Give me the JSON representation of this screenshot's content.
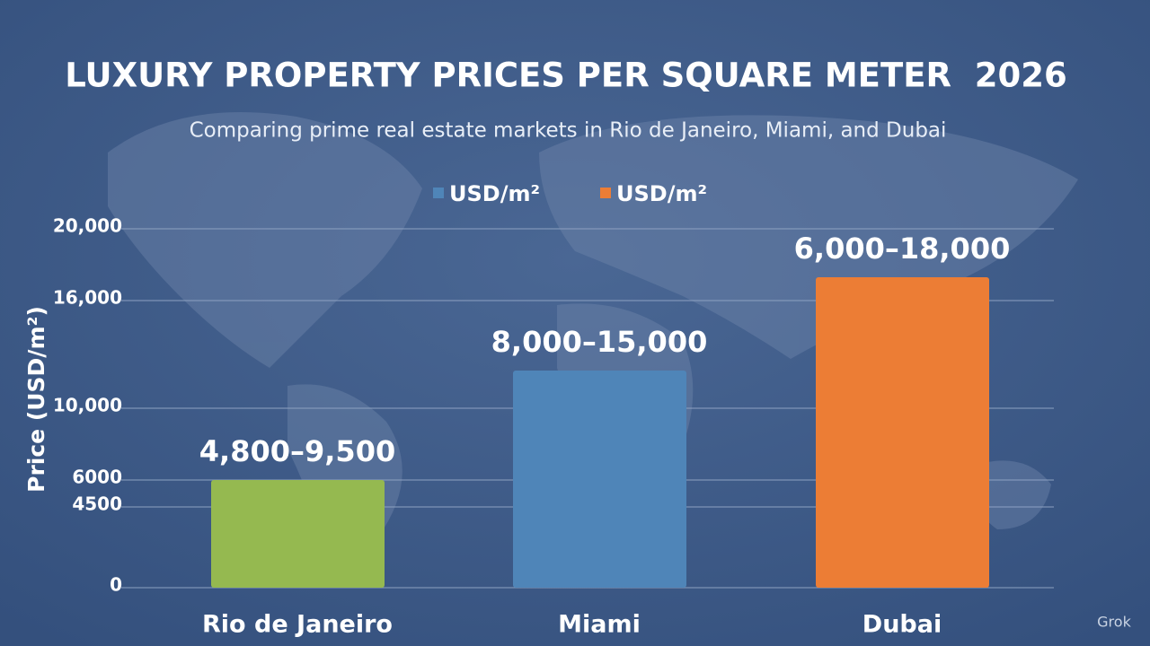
{
  "chart_data": {
    "type": "bar",
    "title": "LUXURY PROPERTY PRICES PER SQUARE METER  2026",
    "subtitle": "Comparing prime real estate markets in Rio de Janeiro, Miami, and Dubai",
    "y_label": "Price (USD/m²)",
    "legend": [
      {
        "name": "USD/m²",
        "color": "#4f85b8"
      },
      {
        "name": "USD/m²",
        "color": "#ec7d35"
      }
    ],
    "categories": [
      "Rio de Janeiro",
      "Miami",
      "Dubai"
    ],
    "values": [
      6000,
      12100,
      17300
    ],
    "colors": [
      "#95b950",
      "#4f85b8",
      "#ec7d35"
    ],
    "range_labels": [
      "4,800–9,500",
      "8,000–15,000",
      "6,000–18,000"
    ],
    "ylim": [
      0,
      20000
    ],
    "yticks": [
      0,
      4500,
      6000,
      {
        "value": 10000,
        "label": "10,000"
      },
      {
        "value": 16000,
        "label": "16,000"
      },
      {
        "value": 20000,
        "label": "20,000"
      }
    ],
    "grid": true,
    "watermark": "Grok"
  }
}
